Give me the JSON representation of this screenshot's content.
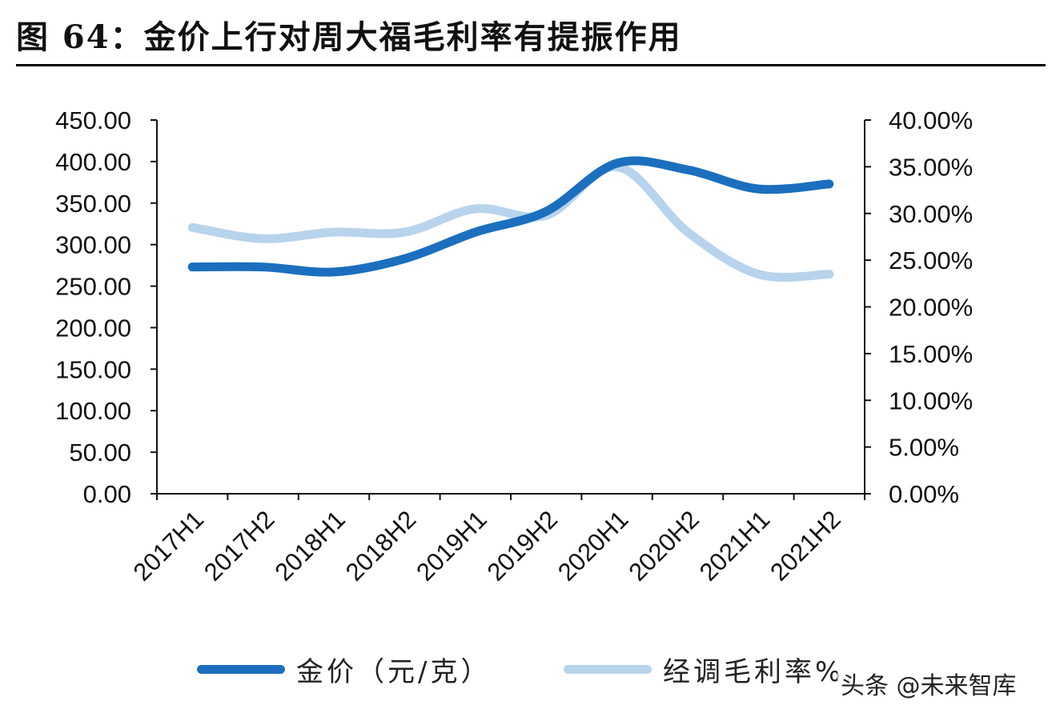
{
  "title": "图 64：金价上行对周大福毛利率有提振作用",
  "watermark": "头条 @未来智库",
  "colors": {
    "gold_price": "#1b6fbe",
    "gross_margin": "#b8d3ec"
  },
  "chart_data": {
    "type": "line",
    "categories": [
      "2017H1",
      "2017H2",
      "2018H1",
      "2018H2",
      "2019H1",
      "2019H2",
      "2020H1",
      "2020H2",
      "2021H1",
      "2021H2"
    ],
    "series": [
      {
        "name": "金价（元/克）",
        "axis": "left",
        "values": [
          273,
          273,
          267,
          283,
          315,
          340,
          398,
          390,
          367,
          373
        ]
      },
      {
        "name": "经调毛利率%",
        "axis": "right",
        "values": [
          28.5,
          27.3,
          28.0,
          28.0,
          30.5,
          29.8,
          35.0,
          28.0,
          23.5,
          23.5
        ]
      }
    ],
    "y_left": {
      "min": 0,
      "max": 450,
      "step": 50,
      "tick_labels": [
        "0.00",
        "50.00",
        "100.00",
        "150.00",
        "200.00",
        "250.00",
        "300.00",
        "350.00",
        "400.00",
        "450.00"
      ]
    },
    "y_right": {
      "min": 0,
      "max": 40,
      "step": 5,
      "tick_labels": [
        "0.00%",
        "5.00%",
        "10.00%",
        "15.00%",
        "20.00%",
        "25.00%",
        "30.00%",
        "35.00%",
        "40.00%"
      ]
    },
    "grid": false,
    "legend": "bottom"
  }
}
